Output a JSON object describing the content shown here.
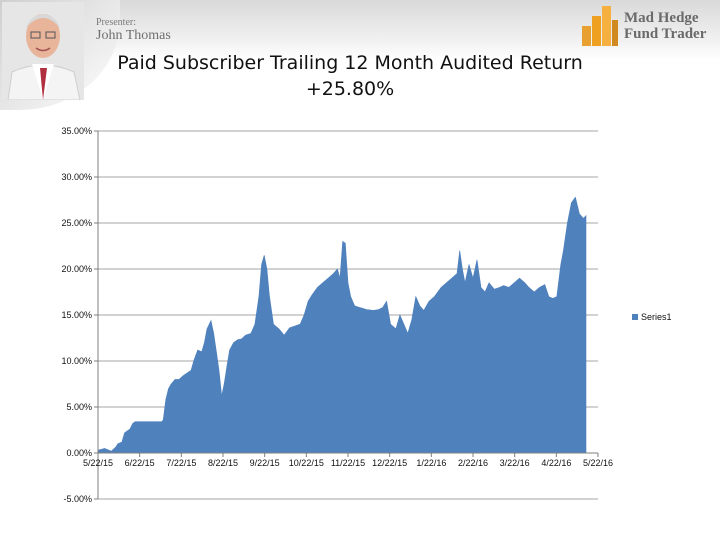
{
  "presenter": {
    "label": "Presenter:",
    "name": "John Thomas"
  },
  "brand": {
    "line1": "Mad Hedge",
    "line2": "Fund Trader",
    "logo_color": "#f0a020"
  },
  "chart_data": {
    "type": "area",
    "title": "Paid Subscriber Trailing 12 Month Audited Return",
    "subtitle": "+25.80%",
    "xlabel": "",
    "ylabel": "",
    "ylim": [
      -5,
      35
    ],
    "grid": true,
    "legend_position": "right",
    "fill_color": "#4f81bd",
    "y_ticks": [
      "35.00%",
      "30.00%",
      "25.00%",
      "20.00%",
      "15.00%",
      "10.00%",
      "5.00%",
      "0.00%",
      "-5.00%"
    ],
    "y_tick_values": [
      35,
      30,
      25,
      20,
      15,
      10,
      5,
      0,
      -5
    ],
    "x_ticks": [
      "5/22/15",
      "6/22/15",
      "7/22/15",
      "8/22/15",
      "9/22/15",
      "10/22/15",
      "11/22/15",
      "12/22/15",
      "1/22/16",
      "2/22/16",
      "3/22/16",
      "4/22/16",
      "5/22/16"
    ],
    "x_range": [
      "2015-05-22",
      "2016-06-01"
    ],
    "series": [
      {
        "name": "Series1",
        "points": [
          [
            "2015-05-22",
            0.3
          ],
          [
            "2015-05-27",
            0.5
          ],
          [
            "2015-06-01",
            0.2
          ],
          [
            "2015-06-04",
            0.6
          ],
          [
            "2015-06-06",
            1.0
          ],
          [
            "2015-06-09",
            1.2
          ],
          [
            "2015-06-11",
            2.2
          ],
          [
            "2015-06-13",
            2.4
          ],
          [
            "2015-06-15",
            2.6
          ],
          [
            "2015-06-17",
            3.2
          ],
          [
            "2015-06-19",
            3.4
          ],
          [
            "2015-06-22",
            3.4
          ],
          [
            "2015-07-01",
            3.4
          ],
          [
            "2015-07-09",
            3.4
          ],
          [
            "2015-07-10",
            3.6
          ],
          [
            "2015-07-12",
            5.8
          ],
          [
            "2015-07-14",
            7.0
          ],
          [
            "2015-07-16",
            7.5
          ],
          [
            "2015-07-19",
            8.0
          ],
          [
            "2015-07-22",
            8.0
          ],
          [
            "2015-07-25",
            8.4
          ],
          [
            "2015-07-28",
            8.7
          ],
          [
            "2015-07-31",
            9.0
          ],
          [
            "2015-08-02",
            10.0
          ],
          [
            "2015-08-05",
            11.2
          ],
          [
            "2015-08-08",
            11.0
          ],
          [
            "2015-08-10",
            12.0
          ],
          [
            "2015-08-12",
            13.5
          ],
          [
            "2015-08-15",
            14.4
          ],
          [
            "2015-08-17",
            13.0
          ],
          [
            "2015-08-19",
            11.0
          ],
          [
            "2015-08-21",
            9.0
          ],
          [
            "2015-08-23",
            6.2
          ],
          [
            "2015-08-25",
            7.6
          ],
          [
            "2015-08-27",
            9.5
          ],
          [
            "2015-08-29",
            11.2
          ],
          [
            "2015-09-01",
            12.0
          ],
          [
            "2015-09-04",
            12.3
          ],
          [
            "2015-09-07",
            12.4
          ],
          [
            "2015-09-10",
            12.8
          ],
          [
            "2015-09-14",
            13.0
          ],
          [
            "2015-09-17",
            14.0
          ],
          [
            "2015-09-20",
            17.0
          ],
          [
            "2015-09-22",
            20.5
          ],
          [
            "2015-09-24",
            21.5
          ],
          [
            "2015-09-26",
            20.0
          ],
          [
            "2015-09-28",
            17.0
          ],
          [
            "2015-10-01",
            14.0
          ],
          [
            "2015-10-05",
            13.5
          ],
          [
            "2015-10-09",
            12.8
          ],
          [
            "2015-10-13",
            13.6
          ],
          [
            "2015-10-17",
            13.8
          ],
          [
            "2015-10-21",
            14.0
          ],
          [
            "2015-10-24",
            15.0
          ],
          [
            "2015-10-27",
            16.5
          ],
          [
            "2015-10-30",
            17.2
          ],
          [
            "2015-11-03",
            18.0
          ],
          [
            "2015-11-07",
            18.5
          ],
          [
            "2015-11-11",
            19.0
          ],
          [
            "2015-11-15",
            19.5
          ],
          [
            "2015-11-18",
            20.0
          ],
          [
            "2015-11-20",
            19.0
          ],
          [
            "2015-11-22",
            23.0
          ],
          [
            "2015-11-24",
            22.8
          ],
          [
            "2015-11-26",
            18.5
          ],
          [
            "2015-11-28",
            17.0
          ],
          [
            "2015-12-01",
            16.0
          ],
          [
            "2015-12-05",
            15.8
          ],
          [
            "2015-12-10",
            15.6
          ],
          [
            "2015-12-15",
            15.5
          ],
          [
            "2015-12-19",
            15.6
          ],
          [
            "2015-12-22",
            15.8
          ],
          [
            "2015-12-25",
            16.5
          ],
          [
            "2015-12-28",
            14.0
          ],
          [
            "2016-01-01",
            13.5
          ],
          [
            "2016-01-04",
            15.0
          ],
          [
            "2016-01-07",
            14.0
          ],
          [
            "2016-01-10",
            13.0
          ],
          [
            "2016-01-13",
            14.5
          ],
          [
            "2016-01-16",
            17.0
          ],
          [
            "2016-01-19",
            16.0
          ],
          [
            "2016-01-22",
            15.5
          ],
          [
            "2016-01-26",
            16.5
          ],
          [
            "2016-01-30",
            17.0
          ],
          [
            "2016-02-04",
            18.0
          ],
          [
            "2016-02-08",
            18.5
          ],
          [
            "2016-02-12",
            19.0
          ],
          [
            "2016-02-16",
            19.5
          ],
          [
            "2016-02-18",
            22.0
          ],
          [
            "2016-02-20",
            20.0
          ],
          [
            "2016-02-22",
            18.5
          ],
          [
            "2016-02-25",
            20.5
          ],
          [
            "2016-02-28",
            19.0
          ],
          [
            "2016-03-02",
            21.0
          ],
          [
            "2016-03-05",
            18.0
          ],
          [
            "2016-03-08",
            17.5
          ],
          [
            "2016-03-11",
            18.5
          ],
          [
            "2016-03-15",
            17.8
          ],
          [
            "2016-03-19",
            18.0
          ],
          [
            "2016-03-22",
            18.2
          ],
          [
            "2016-03-26",
            18.0
          ],
          [
            "2016-03-30",
            18.5
          ],
          [
            "2016-04-03",
            19.0
          ],
          [
            "2016-04-07",
            18.5
          ],
          [
            "2016-04-10",
            18.0
          ],
          [
            "2016-04-14",
            17.5
          ],
          [
            "2016-04-18",
            18.0
          ],
          [
            "2016-04-22",
            18.3
          ],
          [
            "2016-04-25",
            17.0
          ],
          [
            "2016-04-28",
            16.8
          ],
          [
            "2016-05-01",
            17.0
          ],
          [
            "2016-05-04",
            20.5
          ],
          [
            "2016-05-06",
            22.0
          ],
          [
            "2016-05-09",
            25.0
          ],
          [
            "2016-05-12",
            27.2
          ],
          [
            "2016-05-15",
            27.8
          ],
          [
            "2016-05-18",
            26.0
          ],
          [
            "2016-05-21",
            25.5
          ],
          [
            "2016-05-23",
            25.8
          ]
        ]
      }
    ]
  }
}
